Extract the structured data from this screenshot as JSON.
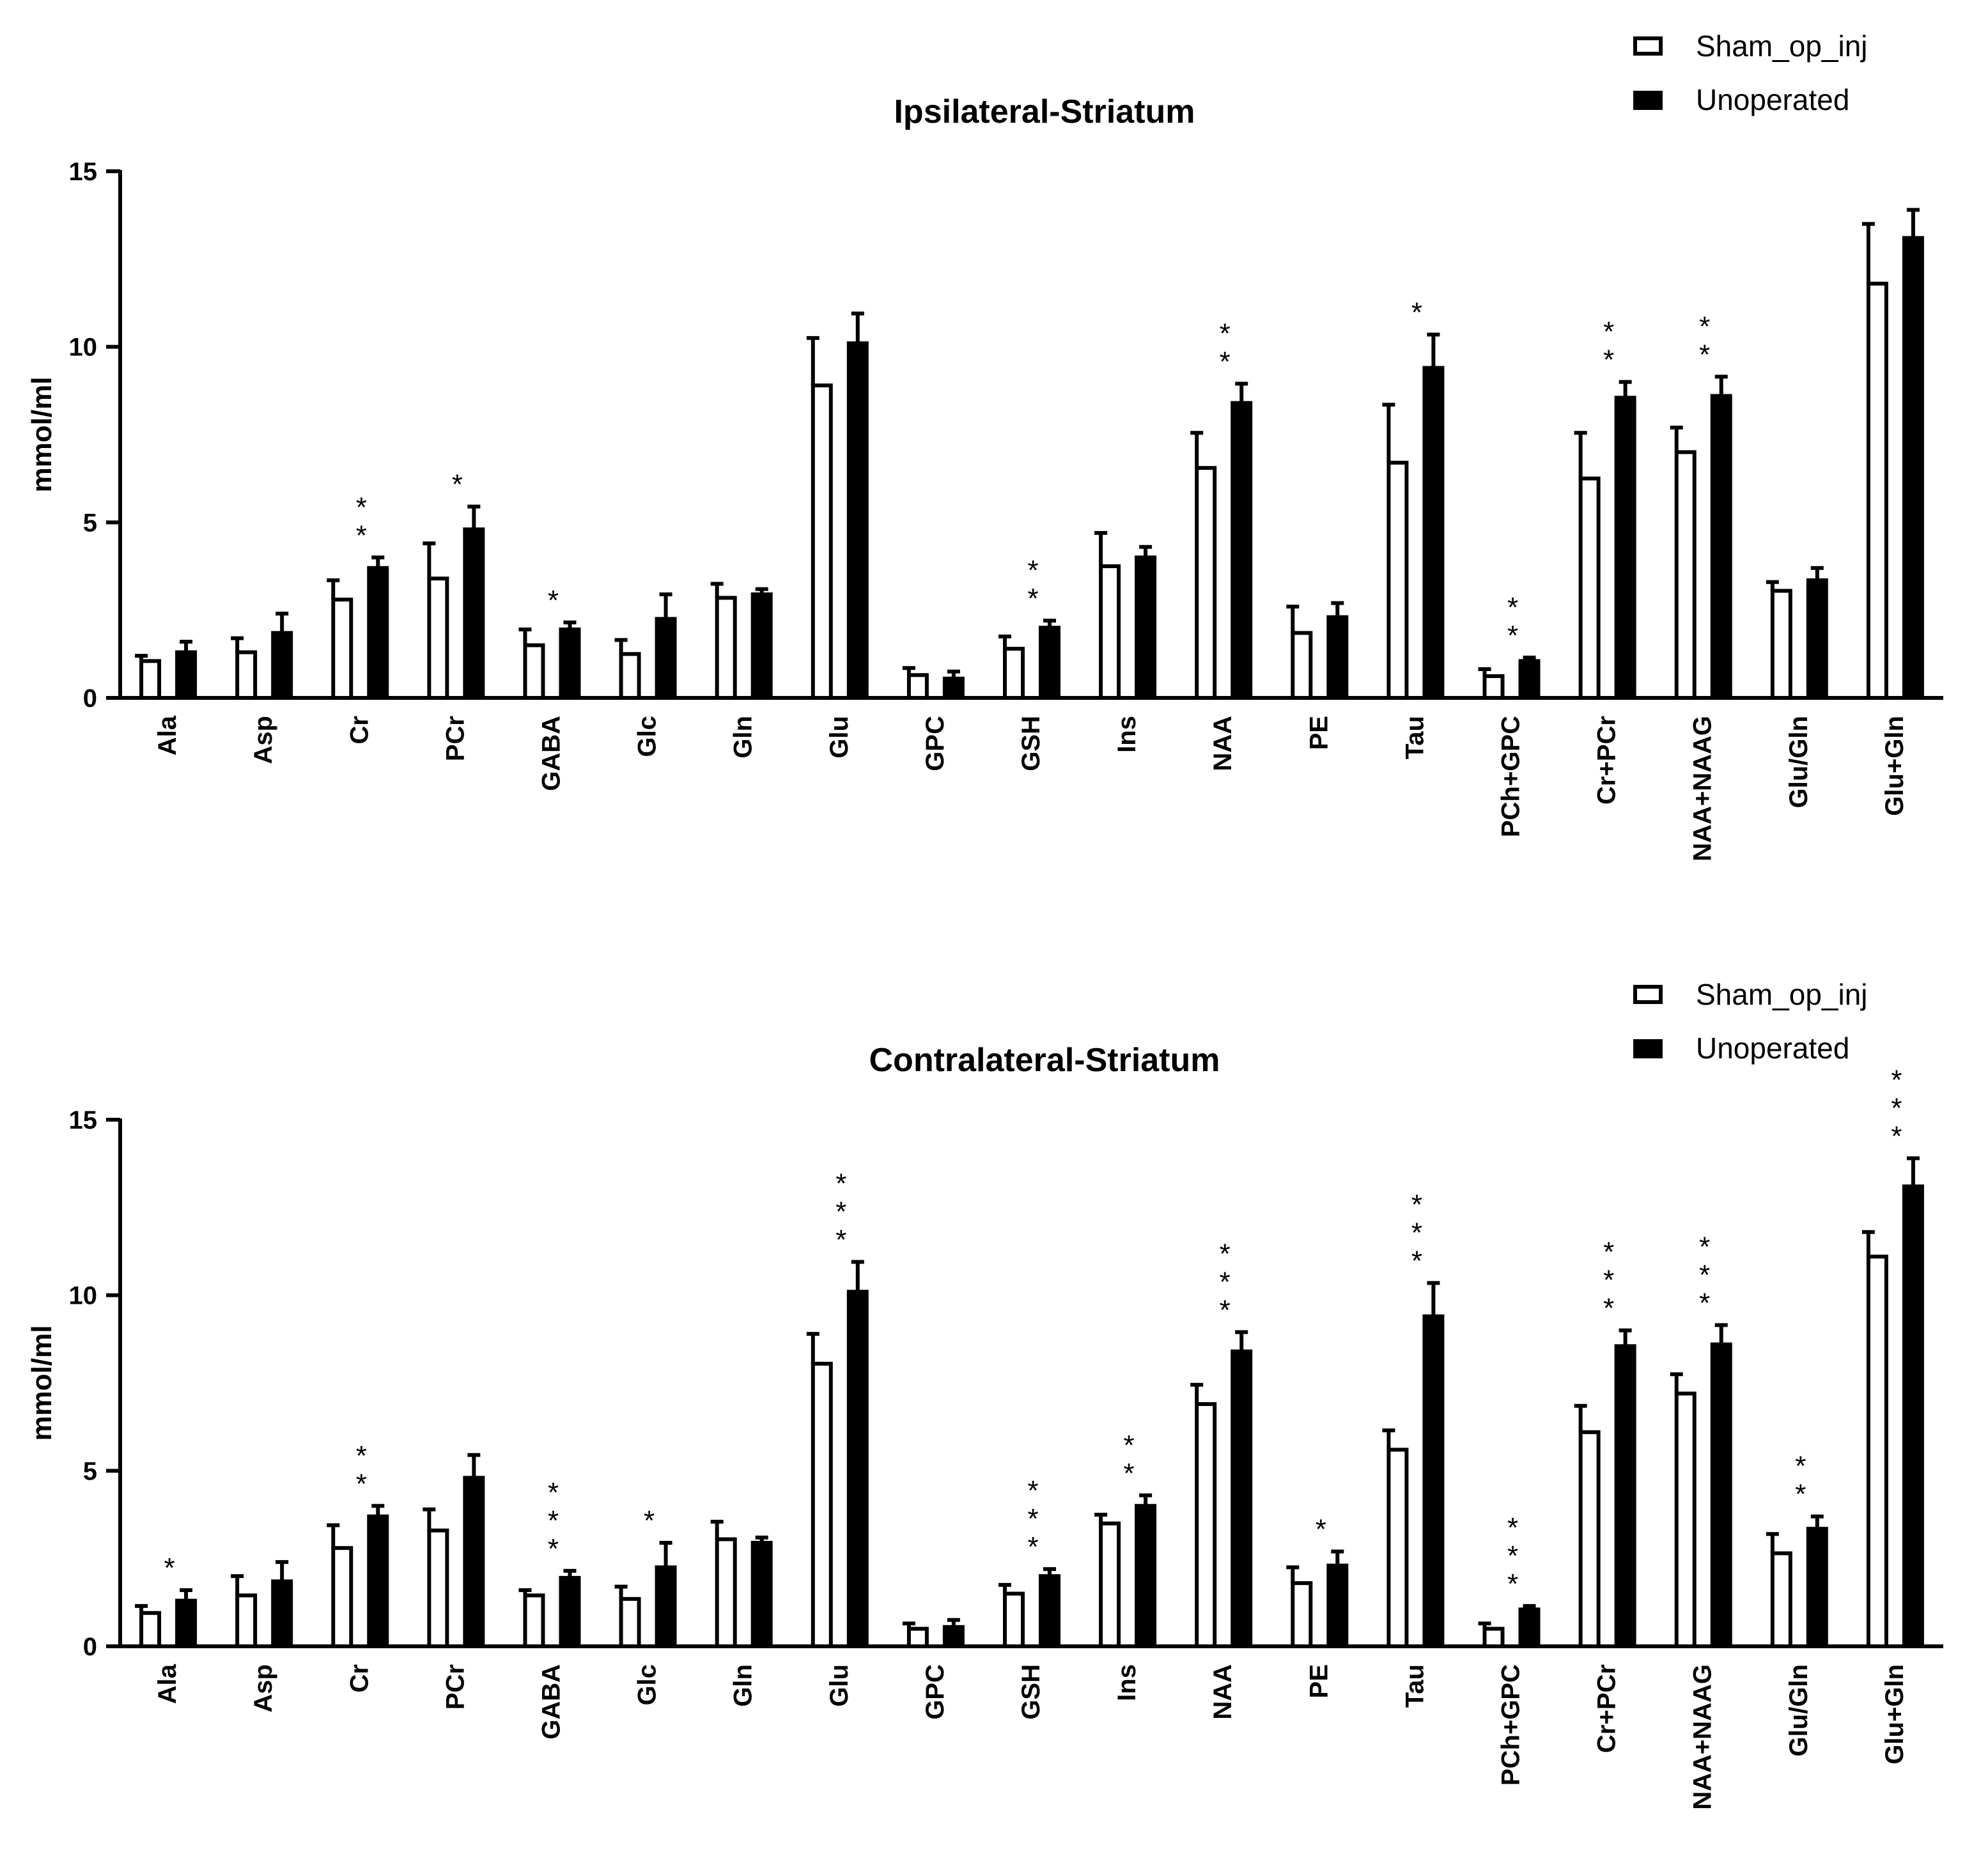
{
  "chart_data": [
    {
      "type": "bar",
      "title": "Ipsilateral-Striatum",
      "xlabel": "",
      "ylabel": "mmol/ml",
      "ylim": [
        0,
        15
      ],
      "yticks": [
        "0",
        "5",
        "10",
        "15"
      ],
      "categories": [
        "Ala",
        "Asp",
        "Cr",
        "PCr",
        "GABA",
        "Glc",
        "Gln",
        "Glu",
        "GPC",
        "GSH",
        "Ins",
        "NAA",
        "PE",
        "Tau",
        "PCh+GPC",
        "Cr+PCr",
        "NAA+NAAG",
        "Glu/Gln",
        "Glu+Gln"
      ],
      "legend": [
        "Sham_op_inj",
        "Unoperated"
      ],
      "legend_position": "top-right",
      "series": [
        {
          "name": "Sham_op_inj",
          "fill": "#ffffff",
          "values": [
            1.05,
            1.3,
            2.8,
            3.4,
            1.5,
            1.25,
            2.85,
            8.9,
            0.65,
            1.4,
            3.75,
            6.55,
            1.85,
            6.7,
            0.62,
            6.25,
            7.0,
            3.05,
            11.8
          ],
          "errors": [
            0.15,
            0.4,
            0.55,
            1.0,
            0.45,
            0.4,
            0.4,
            1.35,
            0.2,
            0.35,
            0.95,
            1.0,
            0.75,
            1.65,
            0.2,
            1.3,
            0.7,
            0.25,
            1.7
          ]
        },
        {
          "name": "Unoperated",
          "fill": "#000000",
          "values": [
            1.3,
            1.85,
            3.7,
            4.8,
            1.95,
            2.25,
            2.95,
            10.1,
            0.55,
            2.0,
            4.0,
            8.4,
            2.3,
            9.4,
            1.05,
            8.55,
            8.6,
            3.35,
            13.1
          ],
          "errors": [
            0.3,
            0.55,
            0.3,
            0.65,
            0.2,
            0.7,
            0.15,
            0.85,
            0.2,
            0.2,
            0.3,
            0.55,
            0.4,
            0.95,
            0.1,
            0.45,
            0.55,
            0.35,
            0.8
          ]
        }
      ],
      "significance": [
        "",
        "",
        "* *",
        "*",
        "*",
        "",
        "",
        "",
        "",
        "* *",
        "",
        "* *",
        "",
        "*",
        "* *",
        "* *",
        "* *",
        "",
        ""
      ]
    },
    {
      "type": "bar",
      "title": "Contralateral-Striatum",
      "xlabel": "",
      "ylabel": "mmol/ml",
      "ylim": [
        0,
        15
      ],
      "yticks": [
        "0",
        "5",
        "10",
        "15"
      ],
      "categories": [
        "Ala",
        "Asp",
        "Cr",
        "PCr",
        "GABA",
        "Glc",
        "Gln",
        "Glu",
        "GPC",
        "GSH",
        "Ins",
        "NAA",
        "PE",
        "Tau",
        "PCh+GPC",
        "Cr+PCr",
        "NAA+NAAG",
        "Glu/Gln",
        "Glu+Gln"
      ],
      "legend": [
        "Sham_op_inj",
        "Unoperated"
      ],
      "legend_position": "top-right",
      "series": [
        {
          "name": "Sham_op_inj",
          "fill": "#ffffff",
          "values": [
            0.95,
            1.45,
            2.8,
            3.3,
            1.45,
            1.35,
            3.05,
            8.05,
            0.5,
            1.5,
            3.5,
            6.9,
            1.8,
            5.6,
            0.5,
            6.1,
            7.2,
            2.65,
            11.1
          ],
          "errors": [
            0.2,
            0.55,
            0.65,
            0.6,
            0.15,
            0.35,
            0.5,
            0.85,
            0.15,
            0.25,
            0.25,
            0.55,
            0.45,
            0.55,
            0.15,
            0.75,
            0.55,
            0.55,
            0.7
          ]
        },
        {
          "name": "Unoperated",
          "fill": "#000000",
          "values": [
            1.3,
            1.85,
            3.7,
            4.8,
            1.95,
            2.25,
            2.95,
            10.1,
            0.55,
            2.0,
            4.0,
            8.4,
            2.3,
            9.4,
            1.05,
            8.55,
            8.6,
            3.35,
            13.1
          ],
          "errors": [
            0.3,
            0.55,
            0.3,
            0.65,
            0.2,
            0.7,
            0.15,
            0.85,
            0.2,
            0.2,
            0.3,
            0.55,
            0.4,
            0.95,
            0.1,
            0.45,
            0.55,
            0.35,
            0.8
          ]
        }
      ],
      "significance": [
        "*",
        "",
        "* *",
        "",
        "* * *",
        "*",
        "",
        "* * *",
        "",
        "* * *",
        "* *",
        "* * *",
        "*",
        "* * *",
        "* * *",
        "* * *",
        "* * *",
        "* *",
        "* * *"
      ]
    }
  ]
}
